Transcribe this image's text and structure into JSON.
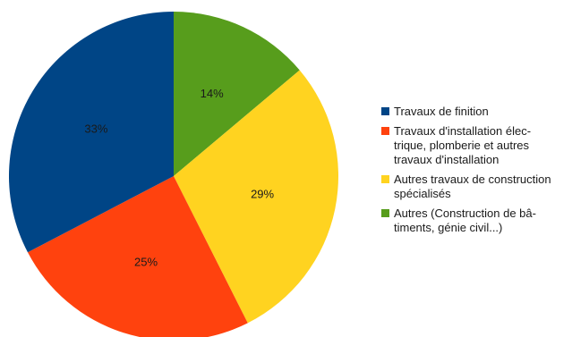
{
  "chart_data": {
    "type": "pie",
    "title": "",
    "start_angle_deg": 0,
    "direction": "clockwise",
    "legend_position": "right",
    "slices": [
      {
        "name": "Autres (Construction de bâtiments, génie civil...)",
        "legend_lines": [
          "Autres (Construction de bâ-",
          "timents, génie civil...)"
        ],
        "value": 14,
        "label": "14%",
        "color": "#579D1C"
      },
      {
        "name": "Autres travaux de construction spécialisés",
        "legend_lines": [
          "Autres travaux de construction",
          "spécialisés"
        ],
        "value": 29,
        "label": "29%",
        "color": "#FFD320"
      },
      {
        "name": "Travaux d'installation électrique, plomberie et autres travaux d'installation",
        "legend_lines": [
          "Travaux d'installation élec-",
          "trique, plomberie et autres",
          "travaux d'installation"
        ],
        "value": 25,
        "label": "25%",
        "color": "#FF420E"
      },
      {
        "name": "Travaux de finition",
        "legend_lines": [
          "Travaux de finition"
        ],
        "value": 33,
        "label": "33%",
        "color": "#004586"
      }
    ],
    "legend_order": [
      3,
      2,
      1,
      0
    ]
  }
}
